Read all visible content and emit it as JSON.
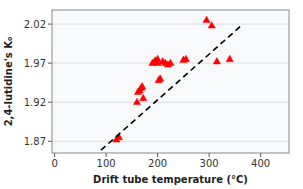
{
  "chart_data": {
    "type": "scatter",
    "xlabel": "Drift tube temperature (°C)",
    "ylabel": "2,4-lutidine's K₀",
    "series": [
      {
        "type": "scatter",
        "color": "#FF0000",
        "marker": "triangle",
        "x": [
          120,
          125,
          160,
          162,
          165,
          168,
          170,
          172,
          190,
          195,
          200,
          200,
          202,
          205,
          210,
          215,
          220,
          225,
          250,
          255,
          295,
          305,
          315,
          340
        ],
        "values": [
          1.872,
          1.875,
          1.92,
          1.933,
          1.935,
          1.938,
          1.94,
          1.925,
          1.97,
          1.973,
          1.97,
          1.975,
          1.948,
          1.95,
          1.972,
          1.97,
          1.968,
          1.97,
          1.974,
          1.975,
          2.025,
          2.018,
          1.972,
          1.975
        ]
      },
      {
        "type": "line",
        "color": "#000000",
        "line_style": "dashed",
        "x": [
          90,
          360
        ],
        "values": [
          1.85865,
          2.0166
        ]
      }
    ],
    "xlim": [
      -5,
      455
    ],
    "ylim": [
      1.855,
      2.038
    ],
    "xticks": [
      0,
      100,
      200,
      300,
      400
    ],
    "yticks": [
      {
        "value": 1.87,
        "label": "1.87"
      },
      {
        "value": 1.92,
        "label": "1.92"
      },
      {
        "value": 1.97,
        "label": "1.97"
      },
      {
        "value": 2.02,
        "label": "2.02"
      }
    ],
    "grid": true
  }
}
